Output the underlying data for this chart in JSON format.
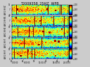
{
  "title": "T2009358_25HZ  WFB",
  "n_panels": 5,
  "panel_labels": [
    "AH1 HHZ",
    "AH1 HHN",
    "AH1 HHE",
    "AH1 HH?",
    "AH1 HH?"
  ],
  "vmin": -180,
  "vmax": -100,
  "n_time": 300,
  "n_freq": 30,
  "fig_bg": "#cccccc",
  "title_fontsize": 3.5,
  "tick_fontsize": 2.0,
  "label_fontsize": 2.2
}
